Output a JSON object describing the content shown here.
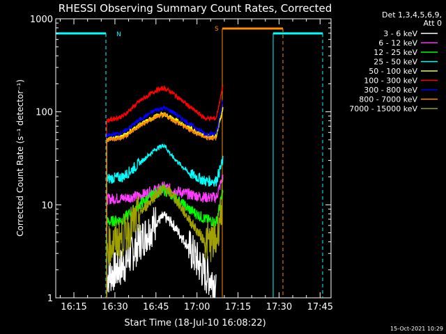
{
  "chart_data": {
    "type": "line",
    "title": "RHESSI Observing Summary Count Rates, Corrected",
    "xlabel": "Start Time (18-Jul-10 16:08:22)",
    "ylabel": "Corrected Count Rate (s⁻¹ detector⁻¹)",
    "y_scale": "log",
    "xlim": [
      "16:08:22",
      "17:49:00"
    ],
    "ylim": [
      1,
      1000
    ],
    "x_ticks": [
      "16:15",
      "16:30",
      "16:45",
      "17:00",
      "17:15",
      "17:30",
      "17:45"
    ],
    "y_ticks": [
      {
        "value": 1,
        "label": "1"
      },
      {
        "value": 10,
        "label": "10"
      },
      {
        "value": 100,
        "label": "100"
      },
      {
        "value": 1000,
        "label": "1000"
      }
    ],
    "legend": {
      "placement": "top-right",
      "header": [
        "Det 1,3,4,5,6,9,",
        "Att 0"
      ]
    },
    "series": [
      {
        "name": "3 - 6 keV",
        "color": "#ffffff",
        "x": [
          "16:27:00",
          "16:33:00",
          "16:39:00",
          "16:45:00",
          "16:48:00",
          "16:51:00",
          "16:57:00",
          "17:03:00",
          "17:07:00"
        ],
        "y": [
          1.7,
          2.2,
          4.0,
          6.5,
          7.5,
          6.3,
          3.5,
          1.8,
          1.5
        ]
      },
      {
        "name": "6 - 12 keV",
        "color": "#ff3cff",
        "x": [
          "16:27:00",
          "16:33:00",
          "16:39:00",
          "16:45:00",
          "16:48:00",
          "16:51:00",
          "16:57:00",
          "17:03:00",
          "17:07:00",
          "17:09:30"
        ],
        "y": [
          11.5,
          11.8,
          12.5,
          14.5,
          15.5,
          14.5,
          13.0,
          12.0,
          12.0,
          20
        ]
      },
      {
        "name": "12 - 25 keV",
        "color": "#00ff00",
        "x": [
          "16:27:00",
          "16:33:00",
          "16:39:00",
          "16:45:00",
          "16:48:00",
          "16:51:00",
          "16:57:00",
          "17:03:00",
          "17:07:00",
          "17:09:30"
        ],
        "y": [
          6.5,
          7.0,
          10.0,
          13.5,
          14.5,
          12.5,
          9.0,
          7.0,
          6.5,
          14
        ]
      },
      {
        "name": "25 - 50 keV",
        "color": "#00ffff",
        "x": [
          "16:27:00",
          "16:33:00",
          "16:39:00",
          "16:45:00",
          "16:48:00",
          "16:51:00",
          "16:57:00",
          "17:03:00",
          "17:07:00",
          "17:09:30"
        ],
        "y": [
          19,
          20,
          28,
          40,
          44,
          33,
          22,
          18,
          18,
          30
        ]
      },
      {
        "name": "50 - 100 keV",
        "color": "#ffff00",
        "x": [
          "16:27:00",
          "16:33:00",
          "16:39:00",
          "16:45:00",
          "16:48:00",
          "16:51:00",
          "16:57:00",
          "17:03:00",
          "17:07:00",
          "17:09:30"
        ],
        "y": [
          50,
          55,
          72,
          90,
          95,
          85,
          68,
          55,
          55,
          110
        ]
      },
      {
        "name": "100 - 300 keV",
        "color": "#ff0000",
        "x": [
          "16:27:00",
          "16:33:00",
          "16:39:00",
          "16:45:00",
          "16:48:00",
          "16:51:00",
          "16:57:00",
          "17:03:00",
          "17:07:00",
          "17:09:30"
        ],
        "y": [
          80,
          90,
          130,
          170,
          180,
          160,
          115,
          85,
          85,
          190
        ]
      },
      {
        "name": "300 - 800 keV",
        "color": "#0000ff",
        "x": [
          "16:27:00",
          "16:33:00",
          "16:39:00",
          "16:45:00",
          "16:48:00",
          "16:51:00",
          "16:57:00",
          "17:03:00",
          "17:07:00",
          "17:09:30"
        ],
        "y": [
          55,
          60,
          82,
          105,
          110,
          100,
          75,
          58,
          58,
          130
        ]
      },
      {
        "name": "800 - 7000 keV",
        "color": "#ff8c00",
        "x": [
          "16:27:00",
          "16:33:00",
          "16:39:00",
          "16:45:00",
          "16:48:00",
          "16:51:00",
          "16:57:00",
          "17:03:00",
          "17:07:00"
        ],
        "y": [
          50,
          53,
          70,
          88,
          92,
          82,
          65,
          53,
          52
        ]
      },
      {
        "name": "7000 - 15000 keV",
        "color": "#a0a000",
        "x": [
          "16:27:00",
          "16:33:00",
          "16:39:00",
          "16:45:00",
          "16:48:00",
          "16:51:00",
          "16:57:00",
          "17:03:00",
          "17:07:00",
          "17:09:30"
        ],
        "y": [
          3.5,
          4.5,
          8.0,
          13.0,
          15.0,
          13.0,
          7.0,
          4.0,
          4.0,
          12
        ]
      }
    ],
    "annotations": [
      {
        "label": "N",
        "color": "#00ffff",
        "time": "16:28:30"
      },
      {
        "label": "S",
        "color": "#ff8c00",
        "time": "17:09:30"
      }
    ]
  },
  "timestamp": "15-Oct-2021 10:29"
}
